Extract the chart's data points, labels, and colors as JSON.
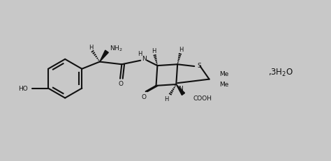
{
  "bg": "#c8c8c8",
  "lc": "#111111",
  "lw": 1.5,
  "fs": 6.5,
  "figsize": [
    4.74,
    2.32
  ],
  "dpi": 100,
  "xlim": [
    0,
    10
  ],
  "ylim": [
    0,
    5
  ]
}
